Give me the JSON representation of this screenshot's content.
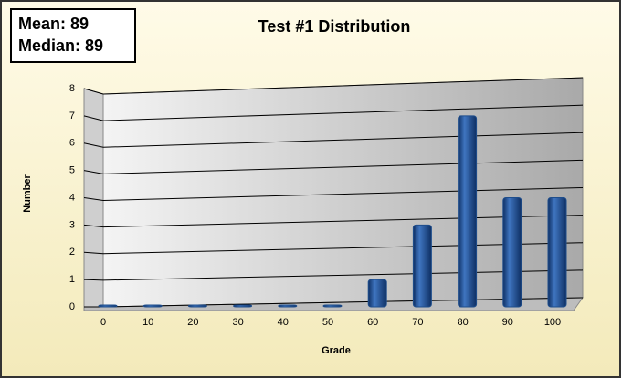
{
  "chart_data": {
    "type": "bar",
    "title": "Test #1 Distribution",
    "annotations": [
      "Mean: 89",
      "Median: 89"
    ],
    "x_label": "Grade",
    "y_label": "Number",
    "categories": [
      "0",
      "10",
      "20",
      "30",
      "40",
      "50",
      "60",
      "70",
      "80",
      "90",
      "100"
    ],
    "values": [
      0,
      0,
      0,
      0,
      0,
      0,
      1,
      3,
      7,
      4,
      4
    ],
    "color": "#1f4e8c",
    "ylim": [
      0,
      8
    ],
    "yticks": [
      0,
      1,
      2,
      3,
      4,
      5,
      6,
      7,
      8
    ],
    "grid": true
  }
}
